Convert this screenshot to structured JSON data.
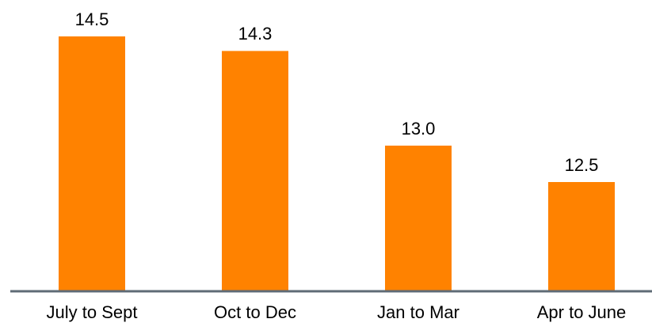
{
  "chart_data": {
    "type": "bar",
    "categories": [
      "July to Sept",
      "Oct to Dec",
      "Jan to Mar",
      "Apr to June"
    ],
    "values": [
      14.5,
      14.3,
      13.0,
      12.5
    ],
    "value_labels": [
      "14.5",
      "14.3",
      "13.0",
      "12.5"
    ],
    "color": "#ff8200",
    "ylim": [
      11,
      15
    ]
  }
}
